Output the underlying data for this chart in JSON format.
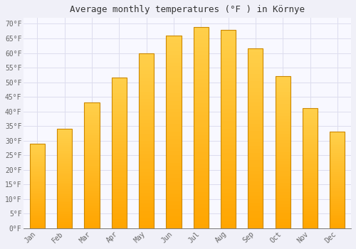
{
  "title": "Average monthly temperatures (°F ) in Környe",
  "months": [
    "Jan",
    "Feb",
    "Mar",
    "Apr",
    "May",
    "Jun",
    "Jul",
    "Aug",
    "Sep",
    "Oct",
    "Nov",
    "Dec"
  ],
  "values": [
    29.0,
    34.0,
    43.0,
    51.5,
    60.0,
    66.0,
    69.0,
    68.0,
    61.5,
    52.0,
    41.0,
    33.0
  ],
  "bar_color_top": "#FFD04B",
  "bar_color_bottom": "#FFA500",
  "bar_edge_color": "#CC8800",
  "background_color": "#F0F0F8",
  "plot_bg_color": "#F8F8FF",
  "grid_color": "#DDDDEE",
  "ylim": [
    0,
    72
  ],
  "yticks": [
    0,
    5,
    10,
    15,
    20,
    25,
    30,
    35,
    40,
    45,
    50,
    55,
    60,
    65,
    70
  ],
  "title_fontsize": 9,
  "tick_fontsize": 7,
  "title_color": "#333333",
  "tick_color": "#666666",
  "bar_width": 0.55
}
